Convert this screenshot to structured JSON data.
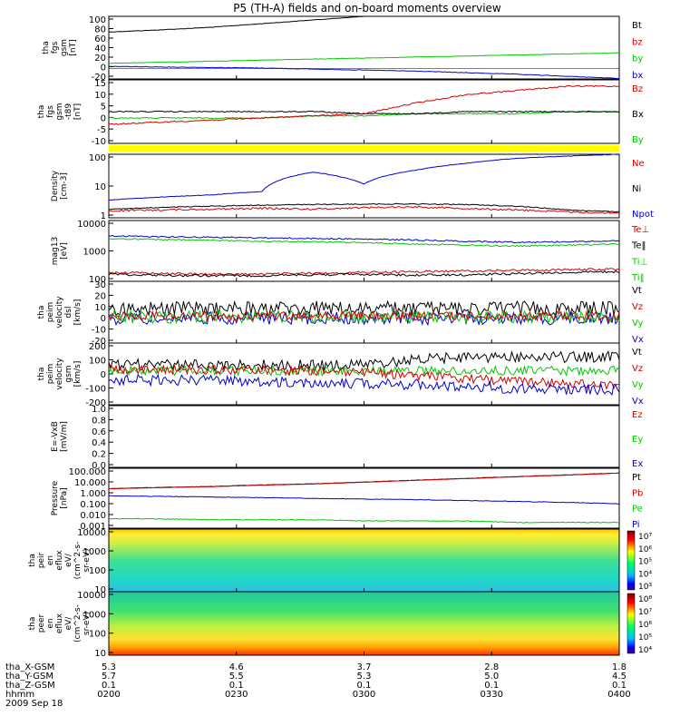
{
  "title": "P5 (TH-A) fields and on-board moments overview",
  "colors": {
    "black": "#000000",
    "red": "#d40000",
    "green": "#00c800",
    "blue": "#0000cc",
    "yellow": "#ffff00"
  },
  "chart_data": {
    "type": "line",
    "time_axis": {
      "tick_labels": [
        "0200",
        "0230",
        "0300",
        "0330",
        "0400"
      ],
      "range": [
        "0200",
        "0400"
      ]
    },
    "ephemeris": {
      "labels": [
        "tha_X-GSM",
        "tha_Y-GSM",
        "tha_Z-GSM",
        "hhmm",
        "2009 Sep 18"
      ],
      "x_gsm": [
        "5.3",
        "4.6",
        "3.7",
        "2.8",
        "1.8"
      ],
      "y_gsm": [
        "5.7",
        "5.5",
        "5.3",
        "5.0",
        "4.5"
      ],
      "z_gsm": [
        "0.1",
        "0.1",
        "0.1",
        "0.1",
        "0.1"
      ],
      "hhmm": [
        "0200",
        "0230",
        "0300",
        "0330",
        "0400"
      ]
    },
    "panels": [
      {
        "id": "fgs",
        "ylabel": [
          "tha",
          "fgs",
          "gsm",
          "[nT]"
        ],
        "ylim": [
          -20,
          100
        ],
        "ticks": [
          "100",
          "80",
          "60",
          "40",
          "20",
          "0",
          "-20"
        ],
        "legend": [
          {
            "name": "Bt",
            "color": "black"
          },
          {
            "name": "bz",
            "color": "red"
          },
          {
            "name": "by",
            "color": "green"
          },
          {
            "name": "bx",
            "color": "blue"
          }
        ]
      },
      {
        "id": "fgs_dt89",
        "ylabel": [
          "tha",
          "fgs",
          "gsm",
          "-t89",
          "[nT]"
        ],
        "ylim": [
          -15,
          15
        ],
        "ticks": [
          "15",
          "10",
          "5",
          "0",
          "-5",
          "-10"
        ],
        "legend": [
          {
            "name": "Bz",
            "color": "red"
          },
          {
            "name": "Bx",
            "color": "black"
          },
          {
            "name": "By",
            "color": "green"
          }
        ]
      },
      {
        "id": "density",
        "ylabel": [
          "Density",
          "[cm-3]"
        ],
        "scale": "log",
        "ticks": [
          "100",
          "10",
          "1"
        ],
        "legend": [
          {
            "name": "Ne",
            "color": "red"
          },
          {
            "name": "Ni",
            "color": "black"
          },
          {
            "name": "Npot",
            "color": "blue"
          }
        ]
      },
      {
        "id": "temp",
        "ylabel": [
          "mag13",
          "[eV]"
        ],
        "scale": "log",
        "ticks": [
          "10000",
          "1000",
          "100"
        ],
        "legend": [
          {
            "name": "Te⊥",
            "color": "red"
          },
          {
            "name": "Te‖",
            "color": "black"
          },
          {
            "name": "Ti⊥",
            "color": "green"
          },
          {
            "name": "Ti‖",
            "color": "green"
          }
        ]
      },
      {
        "id": "peim_vel",
        "ylabel": [
          "tha",
          "peim",
          "velocity",
          "dsl",
          "[km/s]"
        ],
        "ylim": [
          -20,
          30
        ],
        "ticks": [
          "30",
          "20",
          "10",
          "0",
          "-10",
          "-20"
        ],
        "legend": [
          {
            "name": "Vt",
            "color": "black"
          },
          {
            "name": "Vz",
            "color": "red"
          },
          {
            "name": "Vy",
            "color": "green"
          },
          {
            "name": "Vx",
            "color": "blue"
          }
        ]
      },
      {
        "id": "peim_vel_gsm",
        "ylabel": [
          "tha",
          "peim",
          "velocity",
          "gsm",
          "[km/s]"
        ],
        "ylim": [
          -200,
          200
        ],
        "ticks": [
          "200",
          "100",
          "0",
          "-100",
          "-200"
        ],
        "legend": [
          {
            "name": "Vt",
            "color": "black"
          },
          {
            "name": "Vz",
            "color": "red"
          },
          {
            "name": "Vy",
            "color": "green"
          },
          {
            "name": "Vx",
            "color": "blue"
          }
        ]
      },
      {
        "id": "efield",
        "ylabel": [
          "E=-VxB",
          "[mV/m]"
        ],
        "ylim": [
          0,
          1
        ],
        "ticks": [
          "1.0",
          "0.8",
          "0.6",
          "0.4",
          "0.2",
          "0.0"
        ],
        "legend": [
          {
            "name": "Ez",
            "color": "red"
          },
          {
            "name": "Ey",
            "color": "green"
          },
          {
            "name": "Ex",
            "color": "blue"
          }
        ]
      },
      {
        "id": "pressure",
        "ylabel": [
          "Pressure",
          "[nPa]"
        ],
        "scale": "log",
        "ticks": [
          "100.000",
          "10.000",
          "1.000",
          "0.100",
          "0.010",
          "0.001"
        ],
        "legend": [
          {
            "name": "Pt",
            "color": "black"
          },
          {
            "name": "Pb",
            "color": "red"
          },
          {
            "name": "Pe",
            "color": "green"
          },
          {
            "name": "Pi",
            "color": "blue"
          }
        ]
      },
      {
        "id": "peir_spec",
        "type": "heatmap",
        "ylabel": [
          "tha",
          "peir",
          "en",
          "eflux",
          "eV/",
          "(cm^2-s-",
          "sr-eV)"
        ],
        "scale": "log",
        "ticks": [
          "10000",
          "1000",
          "100",
          "10"
        ],
        "colorbar": {
          "ticks": [
            "10⁷",
            "10⁶",
            "10⁵",
            "10⁴",
            "10³"
          ]
        }
      },
      {
        "id": "peer_spec",
        "type": "heatmap",
        "ylabel": [
          "tha",
          "peer",
          "en",
          "eflux",
          "eV/",
          "(cm^2-s-",
          "sr-eV)"
        ],
        "scale": "log",
        "ticks": [
          "10000",
          "1000",
          "100",
          "10"
        ],
        "colorbar": {
          "ticks": [
            "10⁸",
            "10⁷",
            "10⁶",
            "10⁵",
            "10⁴"
          ]
        }
      }
    ],
    "approx_series": {
      "fgs_Bt": [
        70,
        74,
        79,
        86,
        93,
        100,
        108,
        116,
        124,
        132,
        140
      ],
      "fgs_by": [
        10,
        12,
        14,
        16,
        18,
        20,
        22,
        24,
        26,
        28,
        30
      ],
      "fgs_bx": [
        4,
        3,
        2,
        1,
        -1,
        -3,
        -5,
        -8,
        -11,
        -15,
        -19
      ],
      "dt89_Bz": [
        -6,
        -5,
        -4,
        -3,
        -2,
        -1,
        4,
        8,
        10,
        12,
        12
      ],
      "dt89_Bx": [
        0,
        0,
        0,
        0,
        0,
        -1,
        -1,
        0,
        0,
        0,
        0
      ],
      "dt89_By": [
        -3,
        -3,
        -3,
        -3,
        -2,
        -2,
        -1,
        -1,
        -1,
        0,
        0
      ],
      "density_Npot": [
        3,
        4,
        5,
        7,
        50,
        15,
        60,
        120,
        200,
        250,
        300
      ],
      "density_Ni": [
        1.2,
        1.4,
        1.6,
        1.8,
        1.9,
        2,
        2,
        1.9,
        1.6,
        1.1,
        0.9
      ],
      "density_Ne": [
        1,
        1.1,
        1.2,
        1.3,
        1.2,
        1.4,
        1.5,
        1.3,
        1.1,
        0.9,
        0.8
      ],
      "temp_Tperp": [
        3500,
        3200,
        3000,
        2800,
        2600,
        2400,
        2200,
        1900,
        1700,
        1800,
        2000
      ],
      "temp_Tpar": [
        2500,
        2300,
        2100,
        1900,
        1800,
        1600,
        1400,
        1200,
        1100,
        1200,
        1400
      ],
      "temp_low_red": [
        55,
        50,
        45,
        45,
        50,
        55,
        60,
        65,
        70,
        75,
        80
      ],
      "temp_low_black": [
        45,
        40,
        38,
        38,
        42,
        45,
        40,
        42,
        48,
        55,
        60
      ],
      "pressure_Pt": [
        2,
        2.5,
        3,
        4,
        5,
        7,
        10,
        14,
        20,
        28,
        40
      ],
      "pressure_Pi": [
        0.5,
        0.45,
        0.4,
        0.35,
        0.3,
        0.27,
        0.24,
        0.2,
        0.17,
        0.14,
        0.11
      ],
      "pressure_Pe": [
        0.006,
        0.006,
        0.005,
        0.005,
        0.005,
        0.004,
        0.004,
        0.004,
        0.003,
        0.003,
        0.003
      ]
    }
  }
}
